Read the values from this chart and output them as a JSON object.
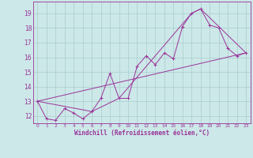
{
  "bg_color": "#cce8e8",
  "grid_color": "#aacccc",
  "line_color": "#993399",
  "xmin": -0.5,
  "xmax": 23.5,
  "ymin": 11.5,
  "ymax": 19.8,
  "series1_x": [
    0,
    1,
    2,
    3,
    4,
    5,
    6,
    7,
    8,
    9,
    10,
    11,
    12,
    13,
    14,
    15,
    16,
    17,
    18,
    19,
    20,
    21,
    22,
    23
  ],
  "series1_y": [
    13.0,
    11.8,
    11.7,
    12.5,
    12.2,
    11.8,
    12.3,
    13.2,
    14.9,
    13.2,
    13.2,
    15.4,
    16.1,
    15.5,
    16.3,
    15.9,
    18.1,
    19.0,
    19.3,
    18.2,
    18.0,
    16.6,
    16.1,
    16.3
  ],
  "series2_x": [
    0,
    23
  ],
  "series2_y": [
    13.0,
    16.3
  ],
  "series3_x": [
    0,
    6,
    9,
    17,
    18,
    23
  ],
  "series3_y": [
    13.0,
    12.3,
    13.2,
    19.0,
    19.3,
    16.3
  ],
  "yticks": [
    12,
    13,
    14,
    15,
    16,
    17,
    18,
    19
  ],
  "xticks": [
    0,
    1,
    2,
    3,
    4,
    5,
    6,
    7,
    8,
    9,
    10,
    11,
    12,
    13,
    14,
    15,
    16,
    17,
    18,
    19,
    20,
    21,
    22,
    23
  ],
  "xlabel": "Windchill (Refroidissement éolien,°C)"
}
